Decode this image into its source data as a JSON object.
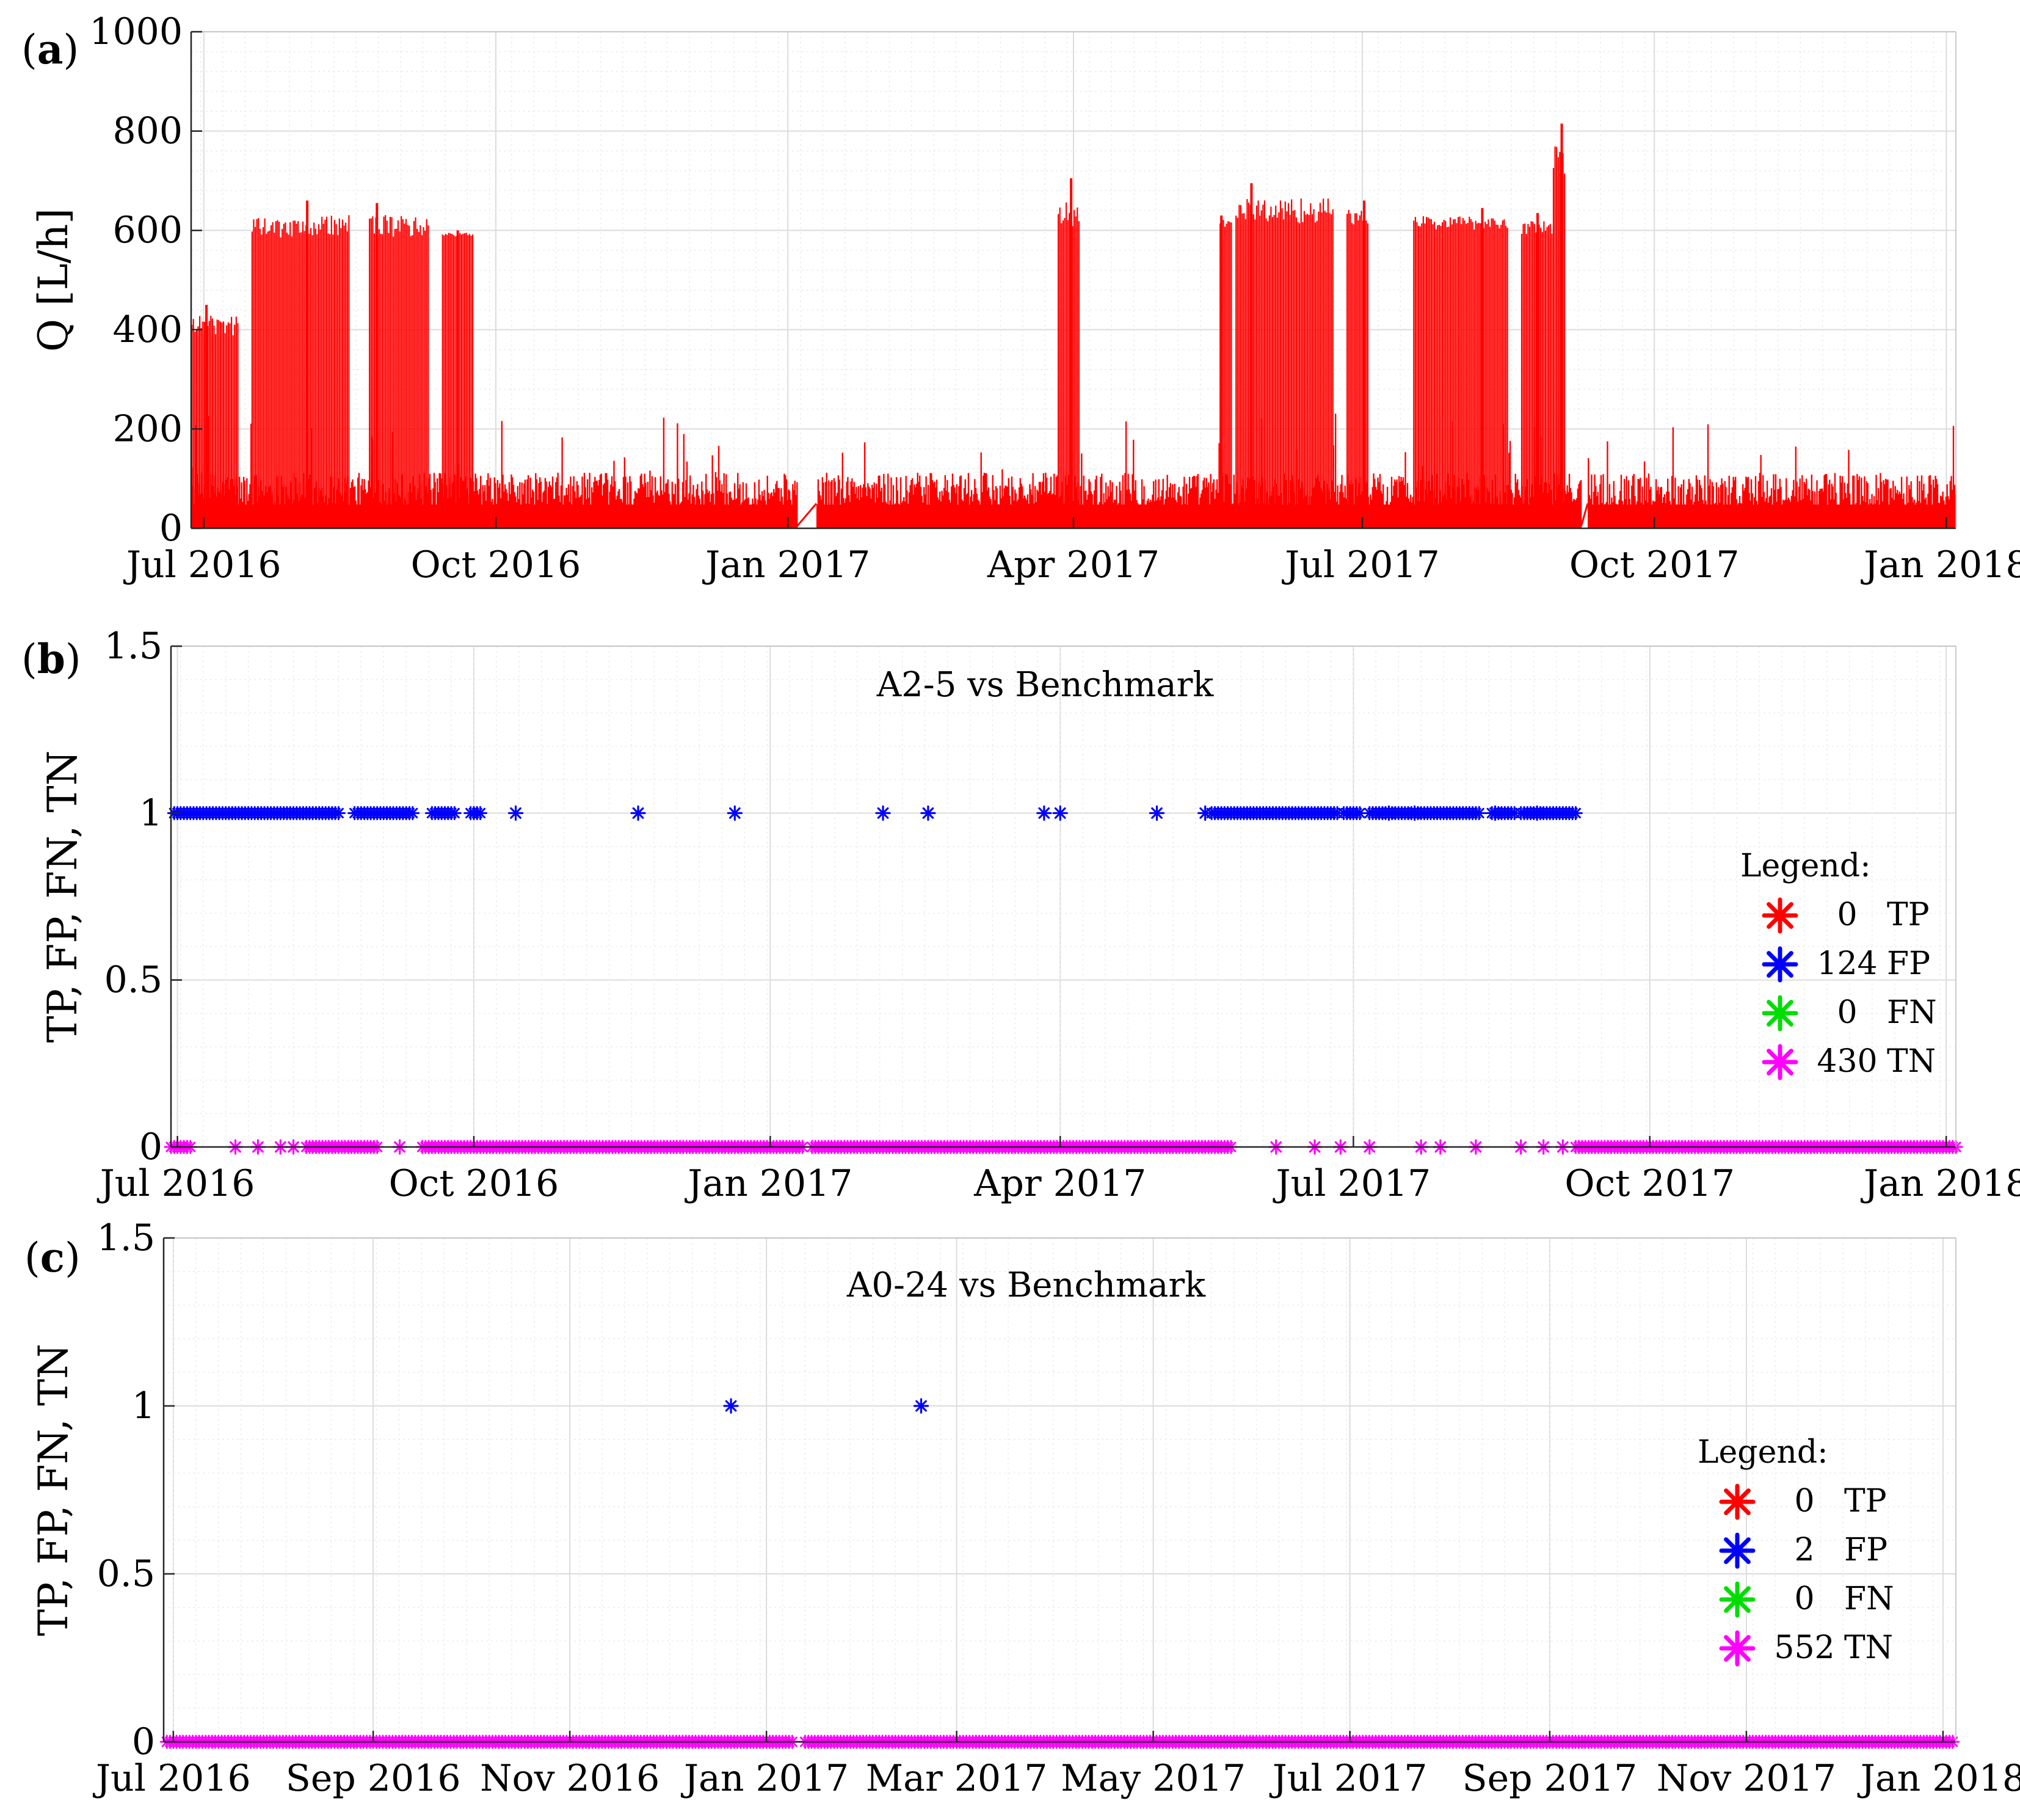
{
  "figure": {
    "panels": [
      {
        "label_open": "(",
        "label_letter": "a",
        "label_close": ")"
      },
      {
        "label_open": "(",
        "label_letter": "b",
        "label_close": ")"
      },
      {
        "label_open": "(",
        "label_letter": "c",
        "label_close": ")"
      }
    ]
  },
  "chart_data": [
    {
      "type": "area",
      "title": "",
      "xlabel": "",
      "ylabel": "Q [L/h]",
      "x_range": [
        "2016-06-27",
        "2018-01-04"
      ],
      "ylim": [
        0,
        1000
      ],
      "yticks": [
        0,
        200,
        400,
        600,
        800,
        1000
      ],
      "xticks": [
        {
          "date": "2016-07-01",
          "label": "Jul 2016"
        },
        {
          "date": "2016-10-01",
          "label": "Oct 2016"
        },
        {
          "date": "2017-01-01",
          "label": "Jan 2017"
        },
        {
          "date": "2017-04-01",
          "label": "Apr 2017"
        },
        {
          "date": "2017-07-01",
          "label": "Jul 2017"
        },
        {
          "date": "2017-10-01",
          "label": "Oct 2017"
        },
        {
          "date": "2018-01-01",
          "label": "Jan 2018"
        }
      ],
      "grid": true,
      "series_color": "#ff0000",
      "high_flow_periods": [
        {
          "start": "2016-06-27",
          "end": "2016-07-12",
          "level": 400,
          "peak": 450
        },
        {
          "start": "2016-07-16",
          "end": "2016-08-16",
          "level": 600,
          "peak": 660
        },
        {
          "start": "2016-08-22",
          "end": "2016-09-10",
          "level": 600,
          "peak": 655
        },
        {
          "start": "2016-09-14",
          "end": "2016-09-24",
          "level": 590,
          "peak": 600
        },
        {
          "start": "2017-03-27",
          "end": "2017-04-03",
          "level": 620,
          "peak": 705
        },
        {
          "start": "2017-05-17",
          "end": "2017-05-21",
          "level": 610,
          "peak": 630
        },
        {
          "start": "2017-05-22",
          "end": "2017-06-22",
          "level": 630,
          "peak": 695
        },
        {
          "start": "2017-06-26",
          "end": "2017-07-03",
          "level": 620,
          "peak": 660
        },
        {
          "start": "2017-07-17",
          "end": "2017-08-16",
          "level": 610,
          "peak": 645
        },
        {
          "start": "2017-08-20",
          "end": "2017-08-30",
          "level": 600,
          "peak": 635
        },
        {
          "start": "2017-08-30",
          "end": "2017-09-03",
          "level": 720,
          "peak": 815
        }
      ],
      "low_flow_baseline": {
        "typical": 80,
        "spikes_up_to": 250
      },
      "gaps": [
        {
          "start": "2017-01-04",
          "end": "2017-01-10"
        },
        {
          "start": "2017-09-08",
          "end": "2017-09-10"
        }
      ]
    },
    {
      "type": "scatter",
      "title": "A2-5 vs Benchmark",
      "xlabel": "",
      "ylabel": "TP, FP, FN, TN",
      "x_range": [
        "2016-06-29",
        "2018-01-04"
      ],
      "ylim": [
        0,
        1.5
      ],
      "yticks": [
        0,
        0.5,
        1,
        1.5
      ],
      "xticks": [
        {
          "date": "2016-07-01",
          "label": "Jul 2016"
        },
        {
          "date": "2016-10-01",
          "label": "Oct 2016"
        },
        {
          "date": "2017-01-01",
          "label": "Jan 2017"
        },
        {
          "date": "2017-04-01",
          "label": "Apr 2017"
        },
        {
          "date": "2017-07-01",
          "label": "Jul 2017"
        },
        {
          "date": "2017-10-01",
          "label": "Oct 2017"
        },
        {
          "date": "2018-01-01",
          "label": "Jan 2018"
        }
      ],
      "grid": true,
      "legend": {
        "placement": "right",
        "title": "Legend:",
        "items": [
          {
            "count": "0",
            "name": "TP",
            "color": "#ff0000"
          },
          {
            "count": "124",
            "name": "FP",
            "color": "#0000ff"
          },
          {
            "count": "0",
            "name": "FN",
            "color": "#00dd00"
          },
          {
            "count": "430",
            "name": "TN",
            "color": "#ff00ff"
          }
        ]
      },
      "series": [
        {
          "name": "FP",
          "y": 1,
          "color": "#0000ff",
          "date_ranges": [
            [
              "2016-06-30",
              "2016-08-20"
            ],
            [
              "2016-08-25",
              "2016-09-12"
            ],
            [
              "2016-09-18",
              "2016-09-25"
            ],
            [
              "2016-09-30",
              "2016-10-03"
            ],
            [
              "2017-05-18",
              "2017-06-26"
            ],
            [
              "2017-06-28",
              "2017-07-03"
            ],
            [
              "2017-07-06",
              "2017-08-09"
            ],
            [
              "2017-08-13",
              "2017-08-20"
            ],
            [
              "2017-08-22",
              "2017-09-08"
            ]
          ],
          "dates": [
            "2016-10-14",
            "2016-11-21",
            "2016-12-21",
            "2017-02-05",
            "2017-02-19",
            "2017-03-27",
            "2017-04-01",
            "2017-05-01",
            "2017-05-16",
            "2017-07-12",
            "2017-07-20",
            "2017-08-14",
            "2017-08-27"
          ]
        },
        {
          "name": "TN",
          "y": 0,
          "color": "#ff00ff",
          "date_ranges": [
            [
              "2016-06-29",
              "2016-07-05"
            ],
            [
              "2016-08-10",
              "2016-09-01"
            ],
            [
              "2016-09-15",
              "2017-01-11"
            ],
            [
              "2017-01-14",
              "2017-05-24"
            ],
            [
              "2017-09-08",
              "2018-01-04"
            ]
          ],
          "dates": [
            "2016-07-19",
            "2016-07-26",
            "2016-08-02",
            "2016-08-06",
            "2016-09-08",
            "2017-06-07",
            "2017-06-19",
            "2017-06-27",
            "2017-07-06",
            "2017-07-22",
            "2017-07-28",
            "2017-08-08",
            "2017-08-22",
            "2017-08-29",
            "2017-09-04"
          ]
        }
      ]
    },
    {
      "type": "scatter",
      "title": "A0-24 vs Benchmark",
      "xlabel": "",
      "ylabel": "TP, FP, FN, TN",
      "x_range": [
        "2016-06-28",
        "2018-01-05"
      ],
      "ylim": [
        0,
        1.5
      ],
      "yticks": [
        0,
        0.5,
        1,
        1.5
      ],
      "xticks": [
        {
          "date": "2016-07-01",
          "label": "Jul 2016"
        },
        {
          "date": "2016-09-01",
          "label": "Sep 2016"
        },
        {
          "date": "2016-11-01",
          "label": "Nov 2016"
        },
        {
          "date": "2017-01-01",
          "label": "Jan 2017"
        },
        {
          "date": "2017-03-01",
          "label": "Mar 2017"
        },
        {
          "date": "2017-05-01",
          "label": "May 2017"
        },
        {
          "date": "2017-07-01",
          "label": "Jul 2017"
        },
        {
          "date": "2017-09-01",
          "label": "Sep 2017"
        },
        {
          "date": "2017-11-01",
          "label": "Nov 2017"
        },
        {
          "date": "2018-01-01",
          "label": "Jan 2018"
        }
      ],
      "grid": true,
      "legend": {
        "placement": "right",
        "title": "Legend:",
        "items": [
          {
            "count": "0",
            "name": "TP",
            "color": "#ff0000"
          },
          {
            "count": "2",
            "name": "FP",
            "color": "#0000ff"
          },
          {
            "count": "0",
            "name": "FN",
            "color": "#00dd00"
          },
          {
            "count": "552",
            "name": "TN",
            "color": "#ff00ff"
          }
        ]
      },
      "series": [
        {
          "name": "FP",
          "y": 1,
          "color": "#0000ff",
          "date_ranges": [],
          "dates": [
            "2016-12-21",
            "2017-02-18"
          ]
        },
        {
          "name": "TN",
          "y": 0,
          "color": "#ff00ff",
          "date_ranges": [
            [
              "2016-06-29",
              "2017-01-09"
            ],
            [
              "2017-01-13",
              "2018-01-04"
            ]
          ],
          "dates": []
        }
      ]
    }
  ]
}
